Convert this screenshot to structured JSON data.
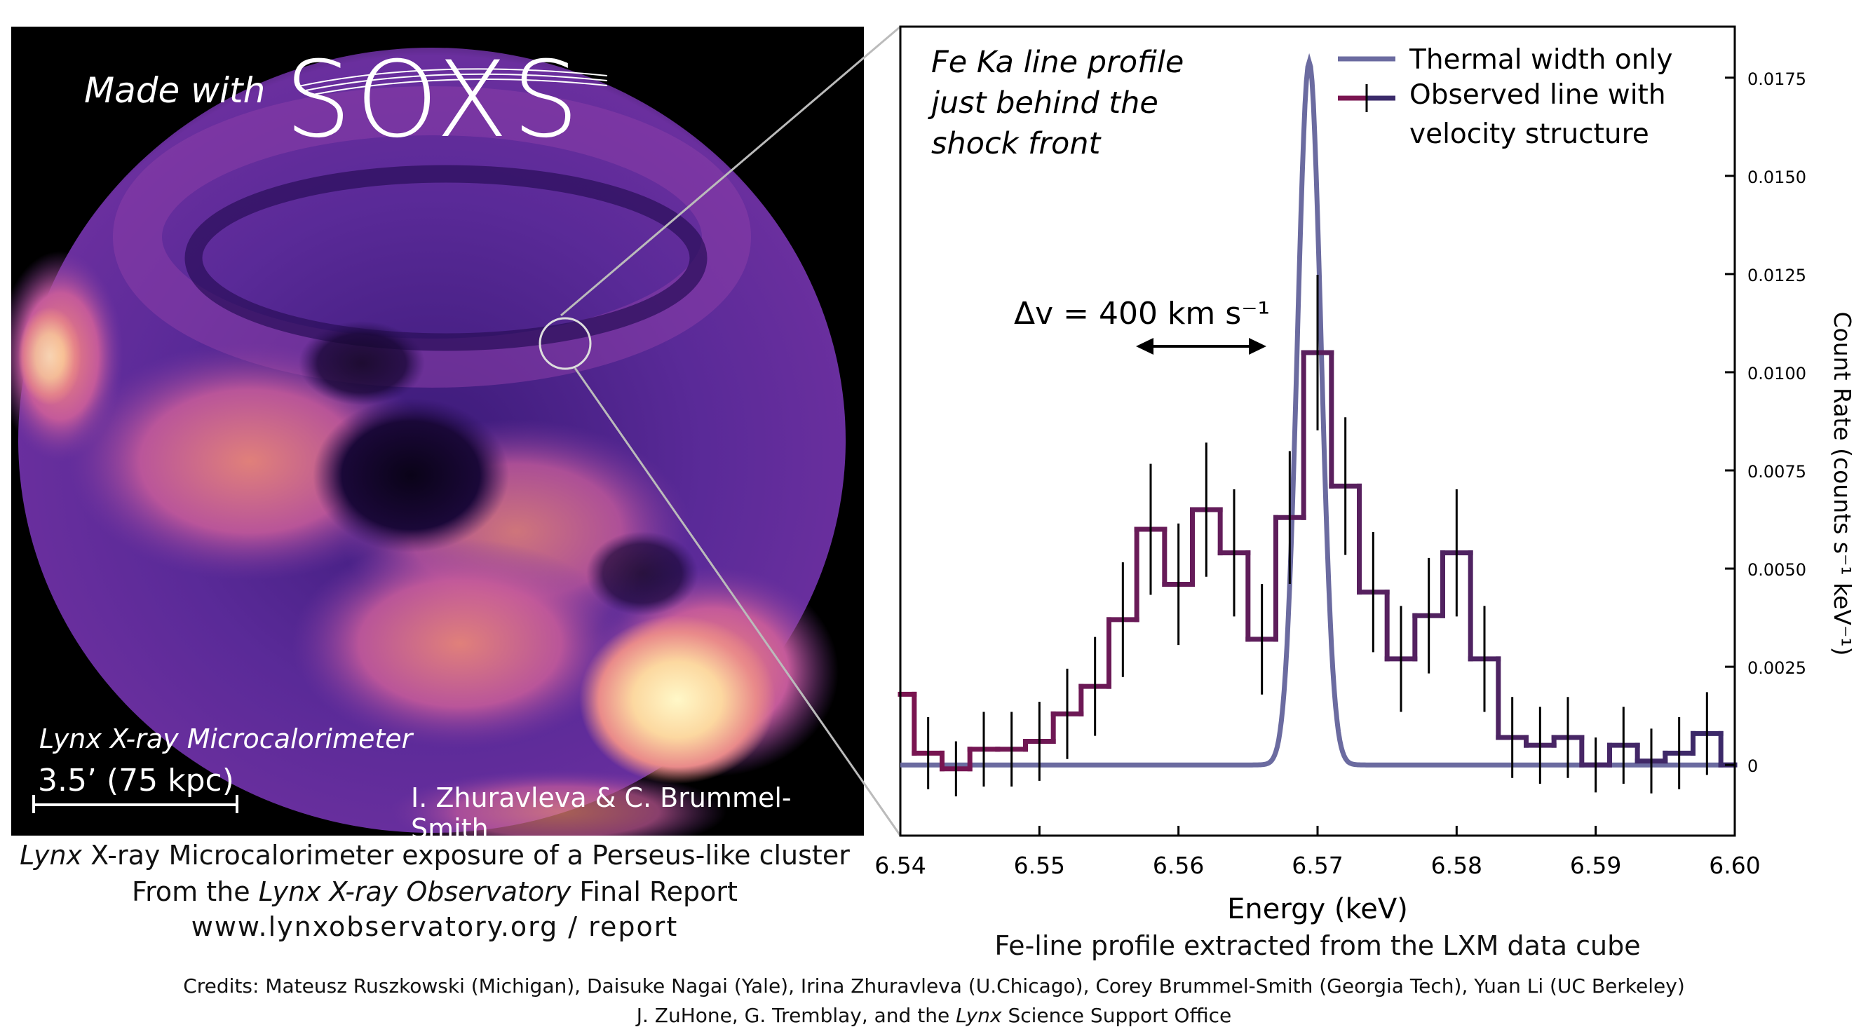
{
  "panel": {
    "made_with": "Made with",
    "logo": "SOXS",
    "instrument": "Lynx X-ray Microcalorimeter",
    "scale_bar": "3.5’ (75 kpc)",
    "authors": "I. Zhuravleva & C. Brummel-Smith"
  },
  "captions": {
    "left_line1_em": "Lynx",
    "left_line1_rest": " X-ray Microcalorimeter exposure of a Perseus-like cluster",
    "left_line2_pre": "From the ",
    "left_line2_em": "Lynx X-ray Observatory",
    "left_line2_post": " Final Report",
    "left_line3": "www.lynxobservatory.org / report",
    "right_caption": "Fe-line profile extracted from the LXM data cube"
  },
  "credits": {
    "line1": "Credits: Mateusz Ruszkowski (Michigan), Daisuke Nagai (Yale), Irina Zhuravleva (U.Chicago), Corey Brummel-Smith (Georgia Tech), Yuan Li (UC Berkeley)",
    "line2_pre": "J. ZuHone, G. Tremblay, and the ",
    "line2_em": "Lynx",
    "line2_post": " Science Support Office"
  },
  "chart_data": {
    "type": "line",
    "title_lines": [
      "Fe Ka line profile",
      "just behind the",
      "shock front"
    ],
    "xlabel": "Energy (keV)",
    "ylabel": "Count Rate (counts s⁻¹ keV⁻¹)",
    "xlim": [
      6.54,
      6.6
    ],
    "ylim": [
      -0.0018,
      0.0188
    ],
    "xticks": [
      "6.54",
      "6.55",
      "6.56",
      "6.57",
      "6.58",
      "6.59",
      "6.60"
    ],
    "yticks": [
      "0",
      "0.0025",
      "0.0050",
      "0.0075",
      "0.0100",
      "0.0125",
      "0.0150",
      "0.0175"
    ],
    "annotation": "Δv = 400 km s⁻¹",
    "legend": [
      "Thermal width only",
      "Observed line with velocity structure"
    ],
    "legend_position": "top-right",
    "colors": {
      "thermal": "#6b6ba0",
      "observed_start": "#7a1450",
      "observed_end": "#3a2a6a",
      "error": "#000000"
    },
    "thermal": {
      "center": 6.5694,
      "sigma": 0.00085,
      "peak": 0.0179
    },
    "observed": {
      "x": [
        6.54,
        6.542,
        6.544,
        6.546,
        6.548,
        6.55,
        6.552,
        6.554,
        6.556,
        6.558,
        6.56,
        6.562,
        6.564,
        6.566,
        6.568,
        6.57,
        6.572,
        6.574,
        6.576,
        6.578,
        6.58,
        6.582,
        6.584,
        6.586,
        6.588,
        6.59,
        6.592,
        6.594,
        6.596,
        6.598,
        6.6
      ],
      "y": [
        0.0018,
        0.0003,
        -0.0001,
        0.0004,
        0.0004,
        0.0006,
        0.0013,
        0.002,
        0.0037,
        0.006,
        0.0046,
        0.0065,
        0.0054,
        0.0032,
        0.0063,
        0.0105,
        0.0071,
        0.0044,
        0.0027,
        0.0038,
        0.0054,
        0.0027,
        0.0007,
        0.0005,
        0.0007,
        0.0,
        0.0005,
        0.0001,
        0.0003,
        0.0008,
        0.0
      ]
    }
  }
}
